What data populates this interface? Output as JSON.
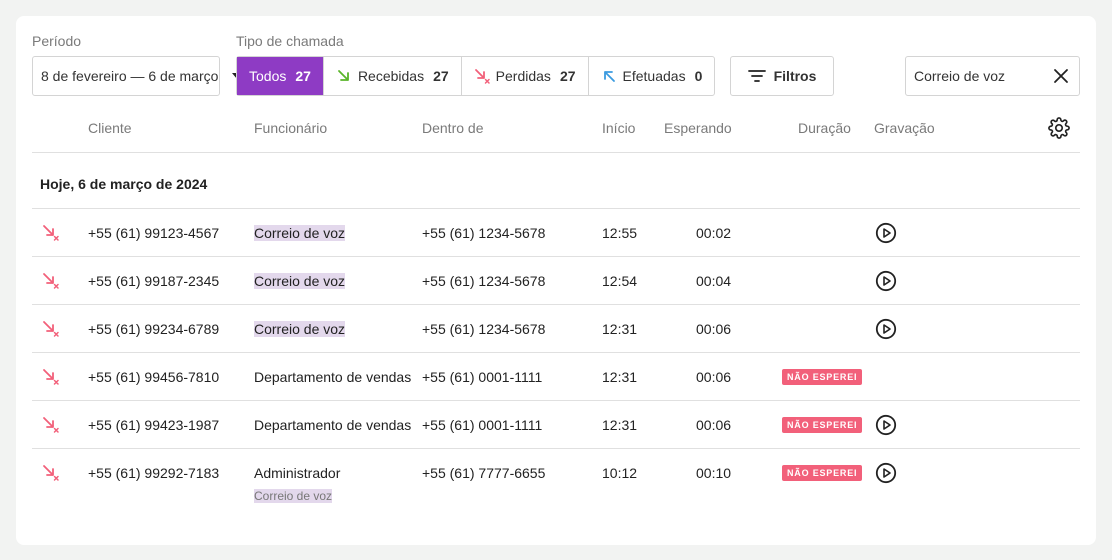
{
  "filters": {
    "period_label": "Período",
    "period_value": "8 de fevereiro — 6 de março",
    "call_type_label": "Tipo de chamada",
    "call_types": [
      {
        "label": "Todos",
        "count": "27",
        "active": true
      },
      {
        "label": "Recebidas",
        "count": "27",
        "icon": "incoming-call-icon"
      },
      {
        "label": "Perdidas",
        "count": "27",
        "icon": "missed-call-icon"
      },
      {
        "label": "Efetuadas",
        "count": "0",
        "icon": "outgoing-call-icon"
      }
    ],
    "filters_button": "Filtros",
    "search_value": "Correio de voz"
  },
  "columns": {
    "client": "Cliente",
    "employee": "Funcionário",
    "inside": "Dentro de",
    "start": "Início",
    "waiting": "Esperando",
    "duration": "Duração",
    "recording": "Gravação"
  },
  "group_title": "Hoje, 6 de março de 2024",
  "badge_text": "NÃO ESPEREI",
  "colors": {
    "accent": "#8e3bc4",
    "missed": "#f2607a",
    "incoming": "#5ab52a",
    "outgoing": "#3b9be0",
    "highlight": "#e3d8ec"
  },
  "rows": [
    {
      "client": "+55 (61) 99123-4567",
      "employee": "Correio de voz",
      "inside": "+55 (61) 1234-5678",
      "start": "12:55",
      "waiting": "00:02"
    },
    {
      "client": "+55 (61) 99187-2345",
      "employee": "Correio de voz",
      "inside": "+55 (61) 1234-5678",
      "start": "12:54",
      "waiting": "00:04"
    },
    {
      "client": "+55 (61) 99234-6789",
      "employee": "Correio de voz",
      "inside": "+55 (61) 1234-5678",
      "start": "12:31",
      "waiting": "00:06"
    },
    {
      "client": "+55 (61) 99456-7810",
      "employee": "Departamento de vendas",
      "inside": "+55 (61) 0001-1111",
      "start": "12:31",
      "waiting": "00:06"
    },
    {
      "client": "+55 (61) 99423-1987",
      "employee": "Departamento de vendas",
      "inside": "+55 (61) 0001-1111",
      "start": "12:31",
      "waiting": "00:06"
    },
    {
      "client": "+55 (61) 99292-7183",
      "employee": "Administrador",
      "employee_sub": "Correio de voz",
      "inside": "+55 (61) 7777-6655",
      "start": "10:12",
      "waiting": "00:10"
    }
  ]
}
